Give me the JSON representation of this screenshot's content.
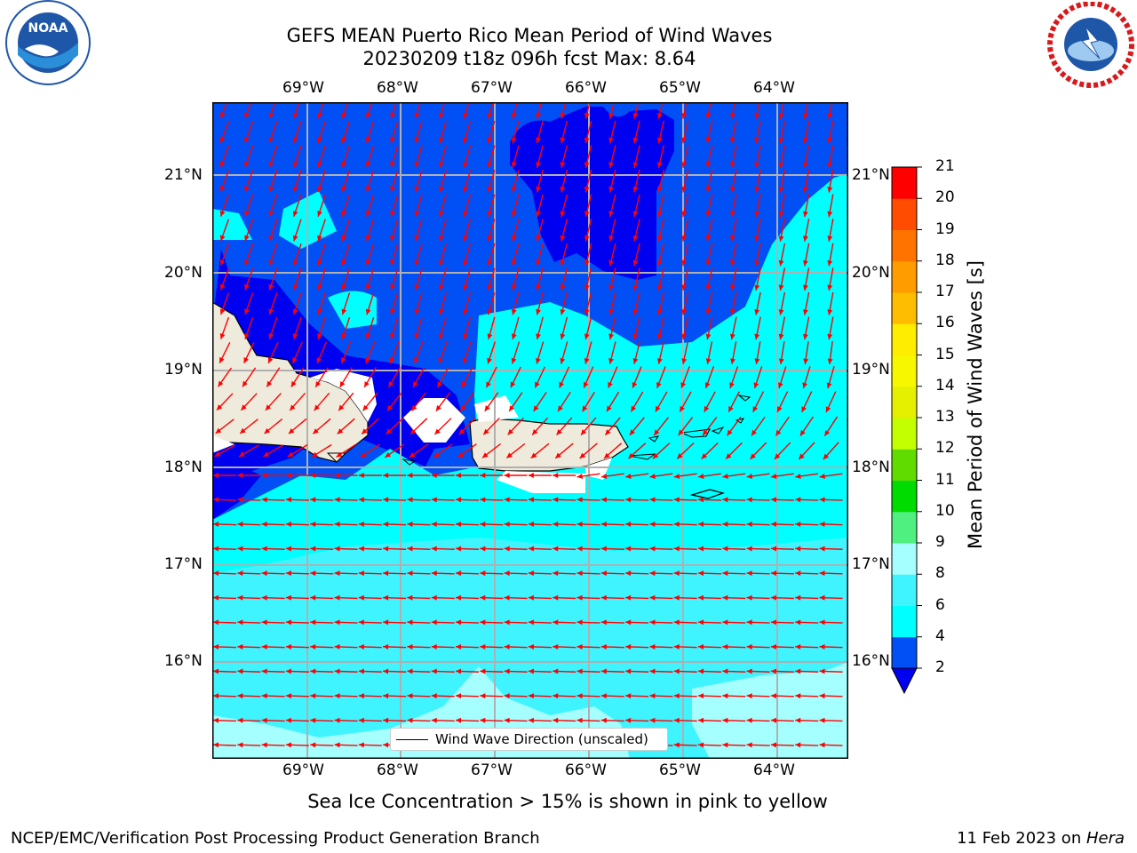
{
  "title": {
    "line1": "GEFS MEAN Puerto Rico Mean Period of Wind Waves",
    "line2": "20230209 t18z 096h fcst   Max: 8.64"
  },
  "logos": {
    "left": {
      "name": "NOAA",
      "ring_text": "NATIONAL OCEANIC AND ATMOSPHERIC ADMINISTRATION · U.S. DEPARTMENT OF COMMERCE",
      "color": "#1f57a8"
    },
    "right": {
      "name": "NATIONAL WEATHER SERVICE",
      "color": "#d7191c"
    }
  },
  "map": {
    "lon_ticks": [
      "69°W",
      "68°W",
      "67°W",
      "66°W",
      "65°W",
      "64°W"
    ],
    "lat_ticks": [
      "21°N",
      "20°N",
      "19°N",
      "18°N",
      "17°N",
      "16°N"
    ],
    "legend": "Wind Wave Direction (unscaled)",
    "arrow_color": "#ff0000",
    "land_color": "#efebdc",
    "grid": true
  },
  "colorbar": {
    "label": "Mean Period of Wind Waves [s]",
    "ticks": [
      "2",
      "4",
      "6",
      "8",
      "9",
      "10",
      "11",
      "12",
      "13",
      "14",
      "15",
      "16",
      "17",
      "18",
      "19",
      "20",
      "21"
    ],
    "colors": [
      "#0050f5",
      "#00ffff",
      "#3ff4ff",
      "#a5ffff",
      "#50f080",
      "#00dc00",
      "#60dc00",
      "#c3ff00",
      "#e5f000",
      "#f7f700",
      "#ffed00",
      "#ffbd00",
      "#ff9d00",
      "#ff7300",
      "#ff4c00",
      "#ff0000"
    ],
    "extend_color": "#0000f0"
  },
  "note": "Sea Ice Concentration > 15% is shown in pink to yellow",
  "footer": {
    "left": "NCEP/EMC/Verification Post Processing Product Generation Branch",
    "right_prefix": "11 Feb 2023 on ",
    "right_host": "Hera"
  }
}
